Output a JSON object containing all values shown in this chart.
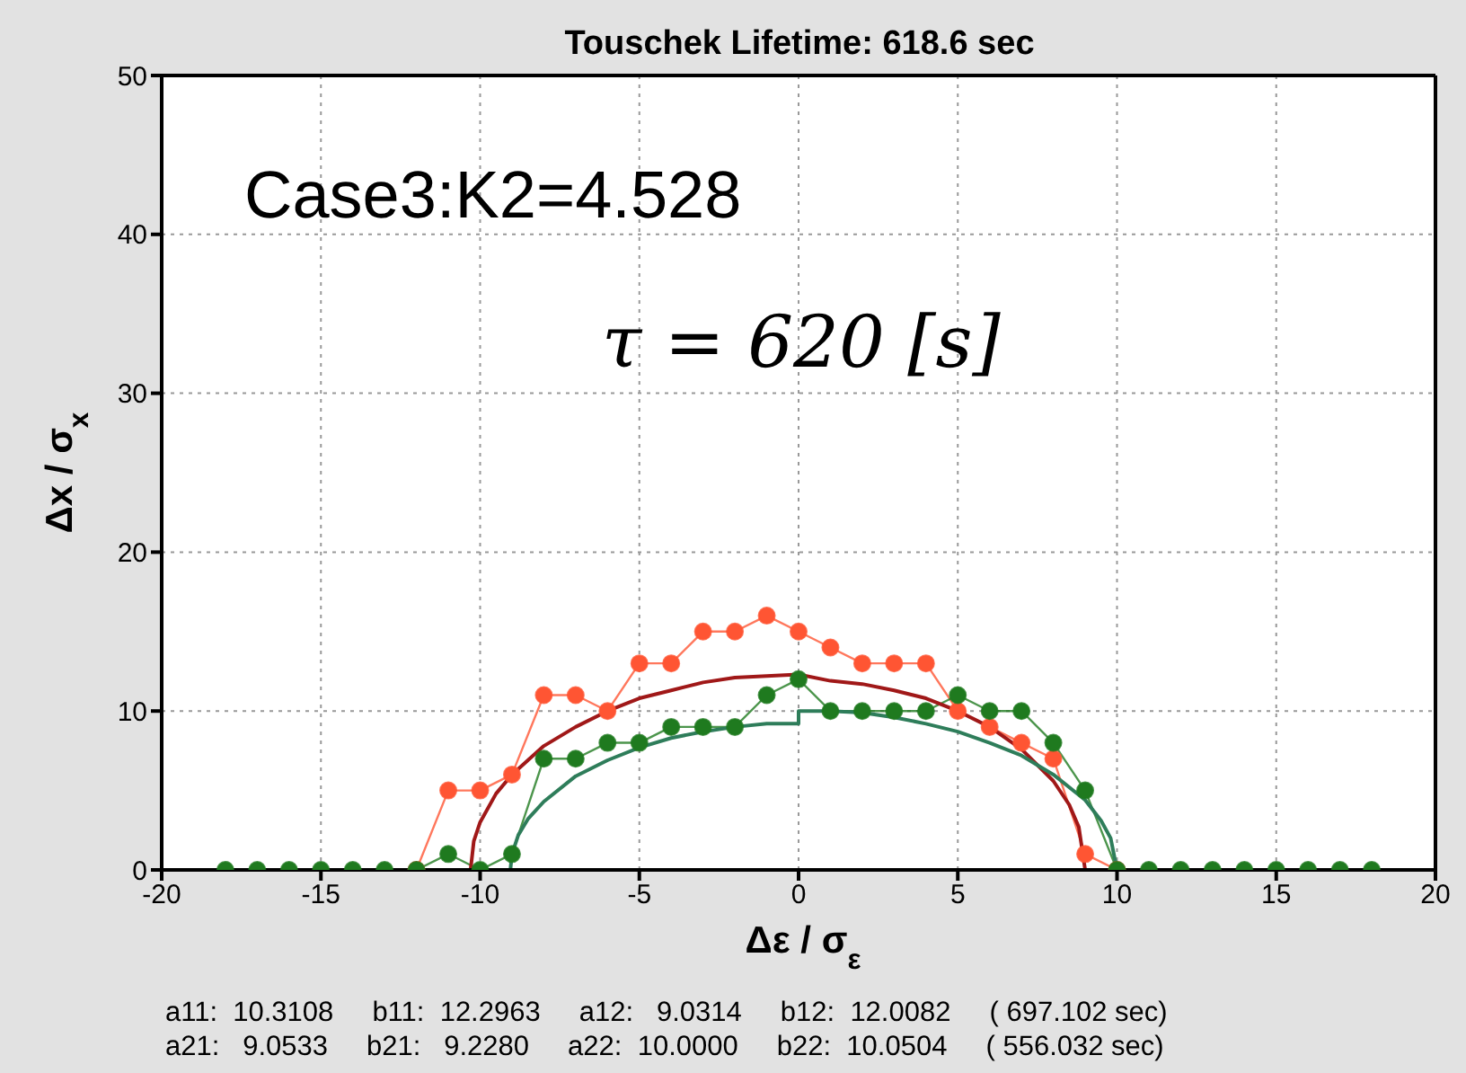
{
  "chart_data": {
    "type": "line",
    "title": "Touschek Lifetime: 618.6 sec",
    "xlabel": "Δε / σ$_{ε}$",
    "ylabel": "Δx / σ$_{x}$",
    "xlim": [
      -20,
      20
    ],
    "xticks": [
      -20,
      -15,
      -10,
      -5,
      0,
      5,
      10,
      15,
      20
    ],
    "ylim": [
      0,
      50
    ],
    "yticks": [
      0,
      10,
      20,
      30,
      40,
      50
    ],
    "grid": true,
    "series": [
      {
        "color": "#ff5533",
        "marker": "circle",
        "x": [
          -12,
          -11,
          -10,
          -9,
          -8,
          -7,
          -6,
          -5,
          -4,
          -3,
          -2,
          -1,
          0,
          1,
          2,
          3,
          4,
          5,
          6,
          7,
          8,
          9,
          10
        ],
        "values": [
          0,
          5,
          5,
          6,
          11,
          11,
          10,
          13,
          13,
          15,
          15,
          16,
          15,
          14,
          13,
          13,
          13,
          10,
          9,
          8,
          7,
          1,
          0
        ]
      },
      {
        "color": "#1f7a1f",
        "marker": "circle",
        "x": [
          -18,
          -17,
          -16,
          -15,
          -14,
          -13,
          -12,
          -11,
          -10,
          -9,
          -8,
          -7,
          -6,
          -5,
          -4,
          -3,
          -2,
          -1,
          0,
          1,
          2,
          3,
          4,
          5,
          6,
          7,
          8,
          9,
          10,
          11,
          12,
          13,
          14,
          15,
          16,
          17,
          18
        ],
        "values": [
          0,
          0,
          0,
          0,
          0,
          0,
          0,
          1,
          0,
          1,
          7,
          7,
          8,
          8,
          9,
          9,
          9,
          11,
          12,
          10,
          10,
          10,
          10,
          11,
          10,
          10,
          8,
          5,
          0,
          0,
          0,
          0,
          0,
          0,
          0,
          0,
          0
        ]
      },
      {
        "color": "#a01818",
        "marker": "none",
        "x": [
          -10.3,
          -10.2,
          -10,
          -9.5,
          -9,
          -8,
          -7,
          -6,
          -5,
          -4,
          -3,
          -2,
          -1,
          0,
          1,
          2,
          3,
          4,
          5,
          6,
          7,
          8,
          8.5,
          8.8,
          9,
          10
        ],
        "values": [
          0,
          1.8,
          3,
          4.8,
          6,
          7.8,
          9,
          10,
          10.8,
          11.3,
          11.8,
          12.1,
          12.2,
          12.3,
          11.9,
          11.7,
          11.3,
          10.8,
          10,
          9,
          7.6,
          5.6,
          4.1,
          2.7,
          0,
          0
        ]
      },
      {
        "color": "#2e7d5a",
        "marker": "none",
        "x": [
          -9.05,
          -9,
          -8.8,
          -8.5,
          -8,
          -7,
          -6,
          -5,
          -4,
          -3,
          -2,
          -1,
          0,
          0,
          1,
          2,
          3,
          4,
          5,
          6,
          7,
          8,
          9,
          9.5,
          9.8,
          10
        ],
        "values": [
          0,
          1,
          2.2,
          3.2,
          4.3,
          5.9,
          6.9,
          7.7,
          8.3,
          8.7,
          9,
          9.2,
          9.2,
          10,
          10,
          9.9,
          9.6,
          9.2,
          8.7,
          8,
          7.2,
          6,
          4.4,
          3.1,
          2,
          0
        ]
      }
    ],
    "annotations": [
      "Case3:K2=4.528",
      "τ = 620 [s]",
      "a11:  10.3108     b11:  12.2963     a12:   9.0314     b12:  12.0082     ( 697.102 sec)",
      "a21:   9.0533     b21:   9.2280     a22:  10.0000     b22:  10.0504     ( 556.032 sec)"
    ]
  }
}
